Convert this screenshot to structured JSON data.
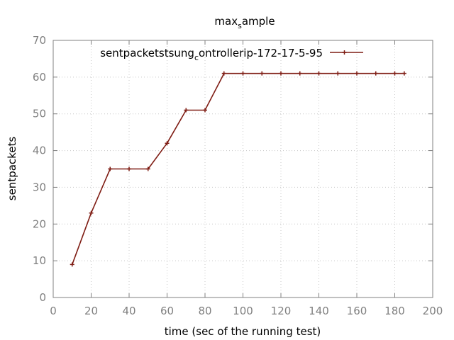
{
  "chart_data": {
    "type": "line",
    "title": {
      "pre": "max",
      "sub": "s",
      "post": "ample"
    },
    "xlabel": "time (sec of the running test)",
    "ylabel": "sentpackets",
    "xlim": [
      0,
      200
    ],
    "ylim": [
      0,
      70
    ],
    "xticks": [
      0,
      20,
      40,
      60,
      80,
      100,
      120,
      140,
      160,
      180,
      200
    ],
    "yticks": [
      0,
      10,
      20,
      30,
      40,
      50,
      60,
      70
    ],
    "grid": true,
    "legend_position": "top",
    "series": [
      {
        "name": {
          "pre": "sentpacketstsung",
          "sub": "c",
          "post": "ontrollerip-172-17-5-95"
        },
        "color": "#7f1d14",
        "x": [
          10,
          20,
          30,
          40,
          50,
          60,
          70,
          80,
          90,
          100,
          110,
          120,
          130,
          140,
          150,
          160,
          170,
          180,
          185
        ],
        "y": [
          9,
          23,
          35,
          35,
          35,
          42,
          51,
          51,
          61,
          61,
          61,
          61,
          61,
          61,
          61,
          61,
          61,
          61,
          61
        ]
      }
    ]
  }
}
